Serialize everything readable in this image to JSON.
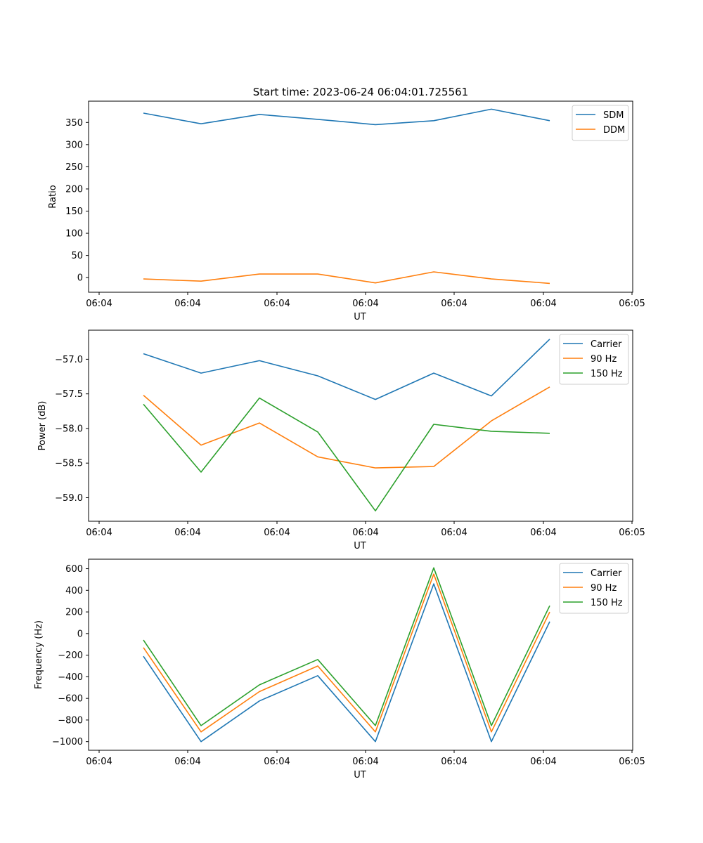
{
  "colors": {
    "c0": "#1f77b4",
    "c1": "#ff7f0e",
    "c2": "#2ca02c"
  },
  "chart_data": [
    {
      "type": "line",
      "title": "Start time: 2023-06-24 06:04:01.725561",
      "xlabel": "UT",
      "ylabel": "Ratio",
      "x_tick_labels": [
        "06:04",
        "06:04",
        "06:04",
        "06:04",
        "06:04",
        "06:04",
        "06:05"
      ],
      "ylim": [
        -33,
        398
      ],
      "yticks": [
        0,
        50,
        100,
        150,
        200,
        250,
        300,
        350
      ],
      "legend_position": "top-right",
      "series": [
        {
          "name": "SDM",
          "color": "#1f77b4",
          "values": [
            371,
            347,
            368,
            357,
            345,
            354,
            380,
            354
          ]
        },
        {
          "name": "DDM",
          "color": "#ff7f0e",
          "values": [
            -3,
            -8,
            8,
            8,
            -12,
            13,
            -3,
            -13
          ]
        }
      ]
    },
    {
      "type": "line",
      "title": "",
      "xlabel": "UT",
      "ylabel": "Power (dB)",
      "x_tick_labels": [
        "06:04",
        "06:04",
        "06:04",
        "06:04",
        "06:04",
        "06:04",
        "06:05"
      ],
      "ylim": [
        -59.34,
        -56.58
      ],
      "yticks": [
        -59.0,
        -58.5,
        -58.0,
        -57.5,
        -57.0
      ],
      "ytick_labels": [
        "−59.0",
        "−58.5",
        "−58.0",
        "−57.5",
        "−57.0"
      ],
      "legend_position": "top-right",
      "series": [
        {
          "name": "Carrier",
          "color": "#1f77b4",
          "values": [
            -56.92,
            -57.2,
            -57.02,
            -57.24,
            -57.58,
            -57.2,
            -57.53,
            -56.71
          ]
        },
        {
          "name": "90 Hz",
          "color": "#ff7f0e",
          "values": [
            -57.52,
            -58.24,
            -57.92,
            -58.41,
            -58.57,
            -58.55,
            -57.89,
            -57.4
          ]
        },
        {
          "name": "150 Hz",
          "color": "#2ca02c",
          "values": [
            -57.65,
            -58.63,
            -57.56,
            -58.05,
            -59.19,
            -57.94,
            -58.04,
            -58.07
          ]
        }
      ]
    },
    {
      "type": "line",
      "title": "",
      "xlabel": "UT",
      "ylabel": "Frequency (Hz)",
      "x_tick_labels": [
        "06:04",
        "06:04",
        "06:04",
        "06:04",
        "06:04",
        "06:04",
        "06:05"
      ],
      "ylim": [
        -1080,
        688
      ],
      "yticks": [
        -1000,
        -800,
        -600,
        -400,
        -200,
        0,
        200,
        400,
        600
      ],
      "ytick_labels": [
        "−1000",
        "−800",
        "−600",
        "−400",
        "−200",
        "0",
        "200",
        "400",
        "600"
      ],
      "legend_position": "top-right",
      "series": [
        {
          "name": "Carrier",
          "color": "#1f77b4",
          "values": [
            -210,
            -1000,
            -624,
            -390,
            -1000,
            460,
            -1000,
            110
          ]
        },
        {
          "name": "90 Hz",
          "color": "#ff7f0e",
          "values": [
            -130,
            -910,
            -537,
            -300,
            -910,
            550,
            -910,
            200
          ]
        },
        {
          "name": "150 Hz",
          "color": "#2ca02c",
          "values": [
            -60,
            -852,
            -475,
            -240,
            -852,
            608,
            -852,
            258
          ]
        }
      ]
    }
  ]
}
